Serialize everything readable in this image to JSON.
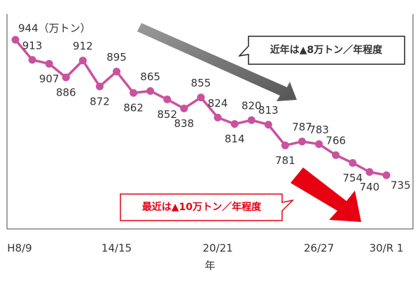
{
  "chart_data": {
    "type": "line",
    "categories": [
      "H8/9",
      null,
      null,
      null,
      null,
      null,
      "14/15",
      null,
      null,
      null,
      null,
      null,
      "20/21",
      null,
      null,
      null,
      null,
      null,
      "26/27",
      null,
      null,
      null,
      "30/R 1"
    ],
    "x_label": "年",
    "series": [
      {
        "color": "#c9529f",
        "values": [
          944,
          913,
          907,
          886,
          912,
          872,
          895,
          862,
          865,
          852,
          838,
          855,
          824,
          814,
          820,
          813,
          781,
          787,
          783,
          766,
          754,
          740,
          735
        ],
        "value_labels": [
          "944（万トン）",
          "913",
          "907",
          "886",
          "912",
          "872",
          "895",
          "862",
          "865",
          "852",
          "838",
          "855",
          "824",
          "814",
          "820",
          "813",
          "781",
          "787",
          "783",
          "766",
          "754",
          "740",
          "735"
        ]
      }
    ],
    "annotations": [
      "近年は▲8万トン／年程度",
      "最近は▲10万トン／年程度"
    ]
  }
}
